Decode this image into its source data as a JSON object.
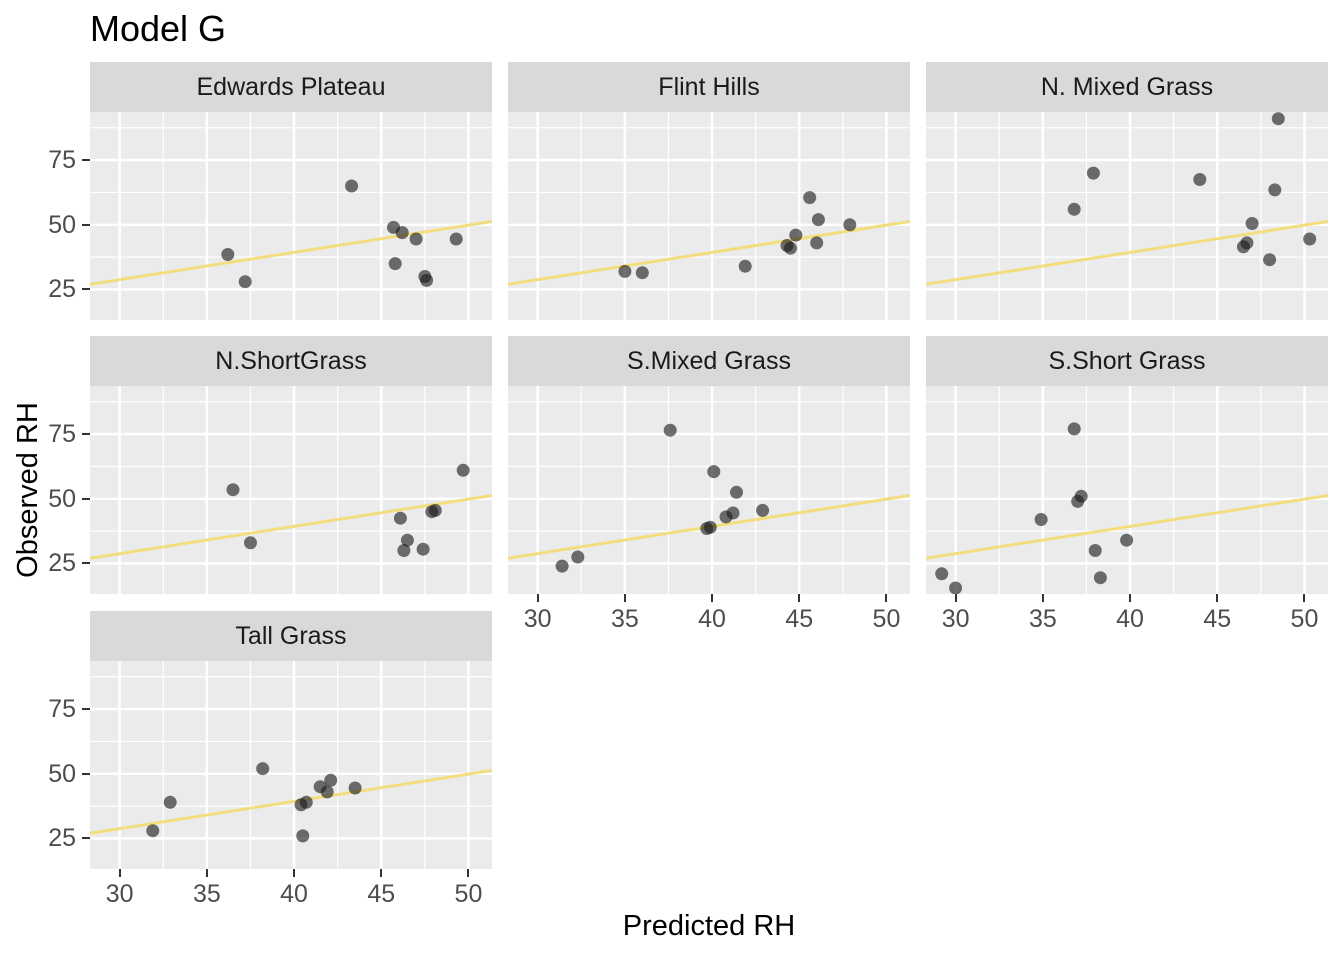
{
  "title": "Model G",
  "colors": {
    "panel_bg": "#EBEBEB",
    "strip_bg": "#D9D9D9",
    "grid": "#FFFFFF",
    "point": "#1A1A1A",
    "point_opacity": 0.62,
    "trend": "#F2DE7E",
    "axis_text": "#4D4D4D",
    "tick": "#333333",
    "title_text": "#000000"
  },
  "chart_data": {
    "type": "scatter",
    "title": "Model G",
    "xlabel": "Predicted RH",
    "ylabel": "Observed RH",
    "facet_layout": {
      "ncol": 3,
      "nrow": 3
    },
    "x_domain": [
      28.3,
      51.35
    ],
    "y_domain": [
      13.2,
      93.6
    ],
    "x_ticks": [
      30,
      35,
      40,
      45,
      50
    ],
    "y_ticks": [
      25,
      50,
      75
    ],
    "x_minor_ticks": [
      32.5,
      37.5,
      42.5,
      47.5
    ],
    "y_minor_ticks": [
      37.5,
      62.5,
      87.5
    ],
    "grid": "on",
    "trend_line": {
      "x": [
        28.3,
        51.35
      ],
      "y": [
        27.0,
        51.3
      ],
      "note": "same reference line in every facet, approx y = 1.05x - 2.9"
    },
    "facets": [
      {
        "label": "Edwards Plateau",
        "points": [
          [
            43.3,
            65
          ],
          [
            45.7,
            49
          ],
          [
            46.2,
            47
          ],
          [
            47.0,
            44.5
          ],
          [
            49.3,
            44.5
          ],
          [
            36.2,
            38.5
          ],
          [
            45.8,
            35
          ],
          [
            47.5,
            30
          ],
          [
            47.6,
            28.5
          ],
          [
            37.2,
            28
          ]
        ]
      },
      {
        "label": "Flint Hills",
        "points": [
          [
            35.0,
            32
          ],
          [
            36.0,
            31.5
          ],
          [
            41.9,
            34
          ],
          [
            44.3,
            42
          ],
          [
            44.5,
            41
          ],
          [
            44.8,
            46
          ],
          [
            45.6,
            60.5
          ],
          [
            46.1,
            52
          ],
          [
            46.0,
            43
          ],
          [
            47.9,
            50
          ]
        ]
      },
      {
        "label": "N. Mixed Grass",
        "points": [
          [
            48.5,
            91
          ],
          [
            37.9,
            70
          ],
          [
            44.0,
            67.5
          ],
          [
            48.3,
            63.5
          ],
          [
            36.8,
            56
          ],
          [
            47.0,
            50.5
          ],
          [
            46.7,
            43
          ],
          [
            46.5,
            41.5
          ],
          [
            50.3,
            44.5
          ],
          [
            48.0,
            36.5
          ]
        ]
      },
      {
        "label": "N.ShortGrass",
        "points": [
          [
            36.5,
            53.5
          ],
          [
            49.7,
            61
          ],
          [
            37.5,
            33
          ],
          [
            46.1,
            42.5
          ],
          [
            47.9,
            45
          ],
          [
            48.1,
            45.5
          ],
          [
            46.5,
            34
          ],
          [
            46.3,
            30
          ],
          [
            47.4,
            30.5
          ]
        ]
      },
      {
        "label": "S.Mixed Grass",
        "points": [
          [
            37.6,
            76.5
          ],
          [
            40.1,
            60.5
          ],
          [
            41.4,
            52.5
          ],
          [
            42.9,
            45.5
          ],
          [
            41.2,
            44.5
          ],
          [
            40.8,
            43
          ],
          [
            39.7,
            38.5
          ],
          [
            39.9,
            39
          ],
          [
            32.3,
            27.5
          ],
          [
            31.4,
            24
          ]
        ]
      },
      {
        "label": "S.Short Grass",
        "points": [
          [
            36.8,
            77
          ],
          [
            37.2,
            51
          ],
          [
            37.0,
            49
          ],
          [
            34.9,
            42
          ],
          [
            39.8,
            34
          ],
          [
            38.0,
            30
          ],
          [
            29.2,
            21
          ],
          [
            30.0,
            15.5
          ],
          [
            38.3,
            19.5
          ]
        ]
      },
      {
        "label": "Tall Grass",
        "points": [
          [
            38.2,
            52
          ],
          [
            42.1,
            47.5
          ],
          [
            41.5,
            45
          ],
          [
            41.9,
            43
          ],
          [
            43.5,
            44.5
          ],
          [
            40.4,
            38
          ],
          [
            40.7,
            39
          ],
          [
            32.9,
            39
          ],
          [
            31.9,
            28
          ],
          [
            40.5,
            26
          ]
        ]
      }
    ]
  }
}
